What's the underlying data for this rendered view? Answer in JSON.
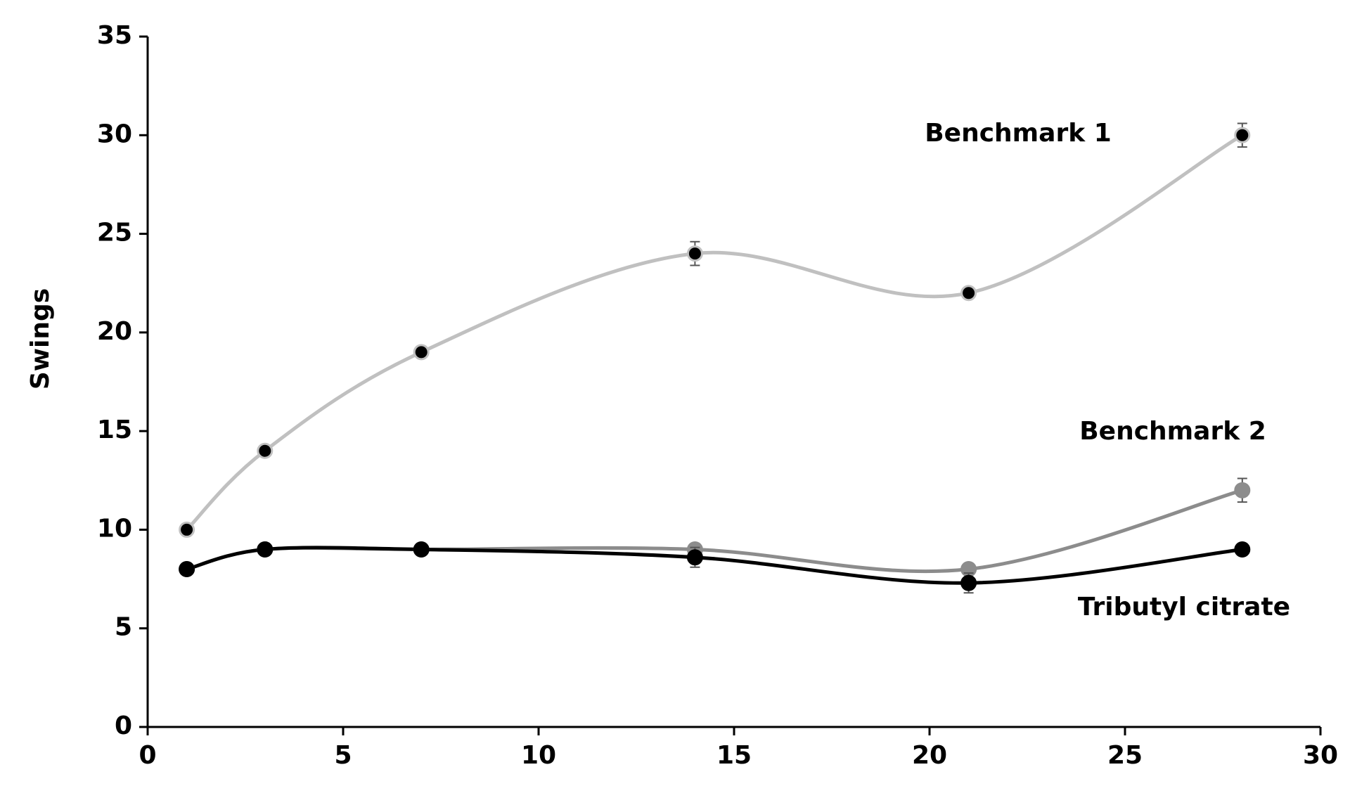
{
  "chart_data": {
    "type": "line",
    "y_label": "Swings",
    "x": [
      1,
      3,
      7,
      14,
      21,
      28
    ],
    "xlim": [
      0,
      30
    ],
    "xticks": [
      0,
      5,
      10,
      15,
      20,
      25,
      30
    ],
    "ylim": [
      0,
      35
    ],
    "yticks": [
      0,
      5,
      10,
      15,
      20,
      25,
      30,
      35
    ],
    "series": [
      {
        "name": "Benchmark 1",
        "color": "#c0c0c0",
        "marker_color": "#000000",
        "values": [
          10,
          14,
          19,
          24,
          22,
          30
        ],
        "errors": [
          0,
          0,
          0,
          0.6,
          0,
          0.6
        ]
      },
      {
        "name": "Benchmark 2",
        "color": "#8c8c8c",
        "marker_color": "#8c8c8c",
        "values": [
          8,
          9,
          9,
          9,
          8,
          12
        ],
        "errors": [
          0,
          0,
          0,
          0,
          0,
          0.6
        ]
      },
      {
        "name": "Tributyl citrate",
        "color": "#000000",
        "marker_color": "#000000",
        "values": [
          8,
          9,
          9,
          8.6,
          7.3,
          9
        ],
        "errors": [
          0,
          0,
          0,
          0.5,
          0.5,
          0
        ]
      }
    ]
  }
}
